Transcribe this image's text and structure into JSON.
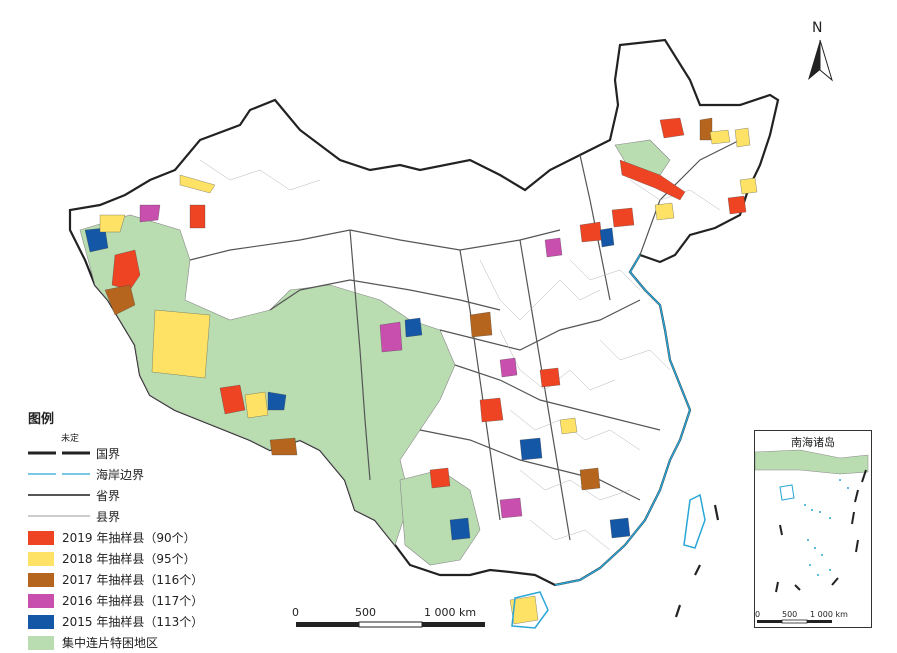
{
  "north_label": "N",
  "legend": {
    "title": "图例",
    "undetermined_label": "未定",
    "lines": [
      {
        "label": "国界",
        "color": "#222222"
      },
      {
        "label": "海岸边界",
        "color": "#2aa6d6"
      },
      {
        "label": "省界",
        "color": "#555555"
      },
      {
        "label": "县界",
        "color": "#9a9a9a"
      }
    ],
    "fills": [
      {
        "label": "2019 年抽样县（90个）",
        "color": "#ee4423"
      },
      {
        "label": "2018 年抽样县（95个）",
        "color": "#fde265"
      },
      {
        "label": "2017 年抽样县（116个）",
        "color": "#b5651d"
      },
      {
        "label": "2016 年抽样县（117个）",
        "color": "#c94fae"
      },
      {
        "label": "2015 年抽样县（113个）",
        "color": "#1457a6"
      },
      {
        "label": "集中连片特困地区",
        "color": "#b9dcb1"
      }
    ]
  },
  "scale_bar": {
    "labels": [
      "0",
      "500",
      "1 000 km"
    ]
  },
  "inset": {
    "title": "南海诸岛",
    "scale_labels": [
      "0",
      "500",
      "1 000 km"
    ]
  }
}
